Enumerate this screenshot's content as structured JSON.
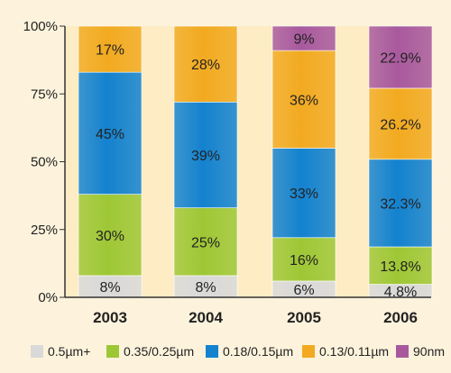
{
  "chart_data": {
    "type": "bar",
    "stacked": true,
    "categories": [
      "2003",
      "2004",
      "2005",
      "2006"
    ],
    "series": [
      {
        "name": "0.5µm+",
        "color": "#d9d9d9",
        "values": [
          8,
          8,
          6,
          4.8
        ],
        "labels": [
          "8%",
          "8%",
          "6%",
          "4.8%"
        ]
      },
      {
        "name": "0.35/0.25µm",
        "color": "#9ec735",
        "values": [
          30,
          25,
          16,
          13.8
        ],
        "labels": [
          "30%",
          "25%",
          "16%",
          "13.8%"
        ]
      },
      {
        "name": "0.18/0.15µm",
        "color": "#1382cf",
        "values": [
          45,
          39,
          33,
          32.3
        ],
        "labels": [
          "45%",
          "39%",
          "33%",
          "32.3%"
        ]
      },
      {
        "name": "0.13/0.11µm",
        "color": "#f2aa20",
        "values": [
          17,
          28,
          36,
          26.2
        ],
        "labels": [
          "17%",
          "28%",
          "36%",
          "26.2%"
        ]
      },
      {
        "name": "90nm",
        "color": "#a8599e",
        "values": [
          0,
          0,
          9,
          22.9
        ],
        "labels": [
          "",
          "",
          "9%",
          "22.9%"
        ]
      }
    ],
    "y_ticks": [
      "0%",
      "25%",
      "50%",
      "75%",
      "100%"
    ],
    "ylim": [
      0,
      100
    ],
    "grid": false,
    "legend_position": "bottom",
    "title": "",
    "xlabel": "",
    "ylabel": ""
  }
}
